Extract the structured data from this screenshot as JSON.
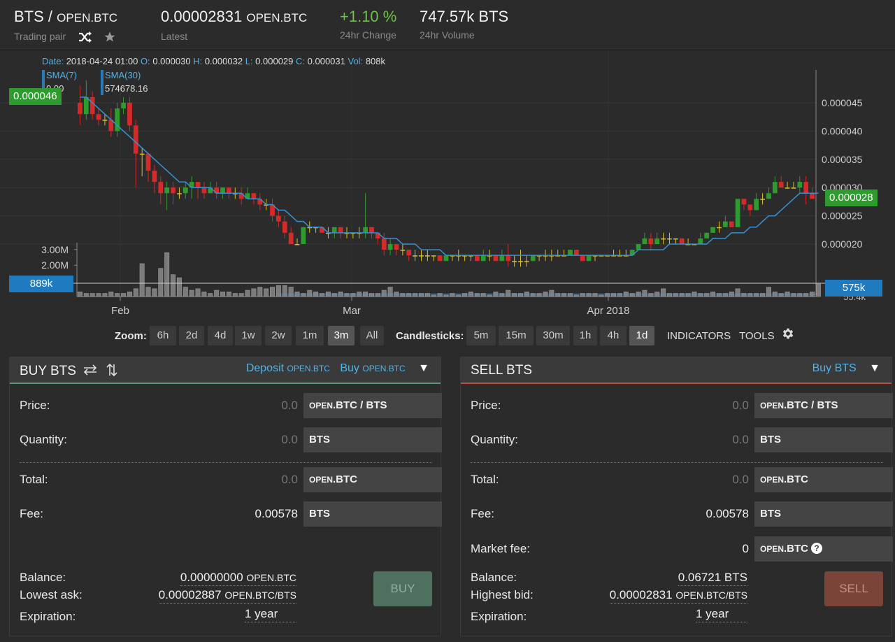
{
  "header": {
    "pair_base": "BTS",
    "pair_sep": "/",
    "pair_quote": "OPEN.BTC",
    "pair_label": "Trading pair",
    "latest_value": "0.00002831",
    "latest_unit": "OPEN.BTC",
    "latest_label": "Latest",
    "change_value": "+1.10 %",
    "change_label": "24hr Change",
    "volume_value": "747.57k BTS",
    "volume_label": "24hr Volume",
    "icons": [
      "shuffle-icon",
      "star-icon"
    ]
  },
  "chart": {
    "ohlc": {
      "date_label": "Date:",
      "date": "2018-04-24 01:00",
      "o_label": "O:",
      "o": "0.000030",
      "h_label": "H:",
      "h": "0.000032",
      "l_label": "L:",
      "l": "0.000029",
      "c_label": "C:",
      "c": "0.000031",
      "vol_label": "Vol:",
      "vol": "808k"
    },
    "sma7_label": "SMA(7)",
    "sma7_value": "0.00",
    "sma30_label": "SMA(30)",
    "sma30_value": "574678.16",
    "left_price_tag": "0.000046",
    "right_price_tag": "0.000028",
    "left_volume_tag": "889k",
    "right_volume_tag": "575k",
    "hidden_volume_tick": "55.4k",
    "colors": {
      "up": "#2e9b2e",
      "down": "#d42a2a",
      "sma": "#3b8fd0",
      "volume_bar": "#8a8a8a",
      "volume_area": "#2a6fa8"
    }
  },
  "chart_data": {
    "type": "candlestick",
    "price_axis_ticks": [
      "0.000045",
      "0.000040",
      "0.000035",
      "0.000030",
      "0.000025",
      "0.000020"
    ],
    "volume_axis_ticks": [
      "3.00M",
      "2.00M"
    ],
    "x_ticks": [
      "Feb",
      "Mar",
      "Apr 2018"
    ],
    "candles": [
      {
        "o": 4.5e-05,
        "c": 4.3e-05,
        "h": 4.8e-05,
        "l": 4.1e-05
      },
      {
        "o": 4.3e-05,
        "c": 4.6e-05,
        "h": 4.9e-05,
        "l": 4.2e-05
      },
      {
        "o": 4.6e-05,
        "c": 4.3e-05,
        "h": 4.7e-05,
        "l": 4.2e-05
      },
      {
        "o": 4.3e-05,
        "c": 4.2e-05,
        "h": 4.4e-05,
        "l": 4.1e-05
      },
      {
        "o": 4.2e-05,
        "c": 4.2e-05,
        "h": 4.3e-05,
        "l": 4.1e-05
      },
      {
        "o": 4.2e-05,
        "c": 4e-05,
        "h": 4.4e-05,
        "l": 3.9e-05
      },
      {
        "o": 4e-05,
        "c": 4.4e-05,
        "h": 4.5e-05,
        "l": 3.9e-05
      },
      {
        "o": 4.4e-05,
        "c": 4.5e-05,
        "h": 4.6e-05,
        "l": 4.3e-05
      },
      {
        "o": 4.5e-05,
        "c": 4.1e-05,
        "h": 4.6e-05,
        "l": 4e-05
      },
      {
        "o": 4.1e-05,
        "c": 3.6e-05,
        "h": 4.2e-05,
        "l": 3e-05
      },
      {
        "o": 3.6e-05,
        "c": 3.6e-05,
        "h": 3.7e-05,
        "l": 3.2e-05
      },
      {
        "o": 3.6e-05,
        "c": 3.3e-05,
        "h": 3.6e-05,
        "l": 3.1e-05
      },
      {
        "o": 3.3e-05,
        "c": 3.1e-05,
        "h": 3.4e-05,
        "l": 2.9e-05
      },
      {
        "o": 3.1e-05,
        "c": 2.9e-05,
        "h": 3.2e-05,
        "l": 2.7e-05
      },
      {
        "o": 2.9e-05,
        "c": 3e-05,
        "h": 3.1e-05,
        "l": 2.6e-05
      },
      {
        "o": 3e-05,
        "c": 2.9e-05,
        "h": 3.1e-05,
        "l": 2.7e-05
      },
      {
        "o": 2.9e-05,
        "c": 2.9e-05,
        "h": 3e-05,
        "l": 2.8e-05
      },
      {
        "o": 2.9e-05,
        "c": 3e-05,
        "h": 3.1e-05,
        "l": 2.8e-05
      },
      {
        "o": 3e-05,
        "c": 3.1e-05,
        "h": 3.2e-05,
        "l": 2.8e-05
      },
      {
        "o": 3.1e-05,
        "c": 3e-05,
        "h": 3.1e-05,
        "l": 2.8e-05
      },
      {
        "o": 3e-05,
        "c": 2.9e-05,
        "h": 3.1e-05,
        "l": 2.8e-05
      },
      {
        "o": 2.9e-05,
        "c": 3e-05,
        "h": 3.1e-05,
        "l": 2.9e-05
      },
      {
        "o": 3e-05,
        "c": 2.9e-05,
        "h": 3.1e-05,
        "l": 2.8e-05
      },
      {
        "o": 2.9e-05,
        "c": 3e-05,
        "h": 3e-05,
        "l": 2.8e-05
      },
      {
        "o": 3e-05,
        "c": 2.9e-05,
        "h": 3e-05,
        "l": 2.8e-05
      },
      {
        "o": 2.9e-05,
        "c": 2.9e-05,
        "h": 3e-05,
        "l": 2.8e-05
      },
      {
        "o": 2.9e-05,
        "c": 2.8e-05,
        "h": 3e-05,
        "l": 2.7e-05
      },
      {
        "o": 2.8e-05,
        "c": 2.9e-05,
        "h": 3e-05,
        "l": 2.8e-05
      },
      {
        "o": 2.9e-05,
        "c": 2.8e-05,
        "h": 2.9e-05,
        "l": 2.7e-05
      },
      {
        "o": 2.8e-05,
        "c": 2.7e-05,
        "h": 2.9e-05,
        "l": 2.6e-05
      },
      {
        "o": 2.7e-05,
        "c": 2.7e-05,
        "h": 2.8e-05,
        "l": 2.6e-05
      },
      {
        "o": 2.7e-05,
        "c": 2.5e-05,
        "h": 2.8e-05,
        "l": 2.4e-05
      },
      {
        "o": 2.5e-05,
        "c": 2.4e-05,
        "h": 2.6e-05,
        "l": 2.3e-05
      },
      {
        "o": 2.4e-05,
        "c": 2.2e-05,
        "h": 2.5e-05,
        "l": 2.1e-05
      },
      {
        "o": 2.2e-05,
        "c": 2e-05,
        "h": 2.3e-05,
        "l": 2e-05
      },
      {
        "o": 2e-05,
        "c": 2e-05,
        "h": 2.1e-05,
        "l": 2e-05
      },
      {
        "o": 2e-05,
        "c": 2.3e-05,
        "h": 2.3e-05,
        "l": 2e-05
      },
      {
        "o": 2.3e-05,
        "c": 2.3e-05,
        "h": 2.4e-05,
        "l": 2.2e-05
      },
      {
        "o": 2.3e-05,
        "c": 2.3e-05,
        "h": 2.3e-05,
        "l": 2.2e-05
      },
      {
        "o": 2.3e-05,
        "c": 2.2e-05,
        "h": 2.3e-05,
        "l": 2.2e-05
      },
      {
        "o": 2.2e-05,
        "c": 2.2e-05,
        "h": 2.3e-05,
        "l": 2.1e-05
      },
      {
        "o": 2.2e-05,
        "c": 2.3e-05,
        "h": 2.3e-05,
        "l": 2.1e-05
      },
      {
        "o": 2.3e-05,
        "c": 2.2e-05,
        "h": 2.3e-05,
        "l": 2.1e-05
      },
      {
        "o": 2.2e-05,
        "c": 2.2e-05,
        "h": 2.3e-05,
        "l": 2.1e-05
      },
      {
        "o": 2.2e-05,
        "c": 2.2e-05,
        "h": 2.2e-05,
        "l": 2.1e-05
      },
      {
        "o": 2.2e-05,
        "c": 2.2e-05,
        "h": 2.3e-05,
        "l": 2.1e-05
      },
      {
        "o": 2.2e-05,
        "c": 2.3e-05,
        "h": 2.9e-05,
        "l": 2.1e-05
      },
      {
        "o": 2.3e-05,
        "c": 2.2e-05,
        "h": 2.3e-05,
        "l": 2.1e-05
      },
      {
        "o": 2.2e-05,
        "c": 2.1e-05,
        "h": 2.2e-05,
        "l": 2e-05
      },
      {
        "o": 2.1e-05,
        "c": 1.9e-05,
        "h": 2.2e-05,
        "l": 1.8e-05
      },
      {
        "o": 1.9e-05,
        "c": 2e-05,
        "h": 2.1e-05,
        "l": 1.8e-05
      },
      {
        "o": 2e-05,
        "c": 1.9e-05,
        "h": 2e-05,
        "l": 1.8e-05
      },
      {
        "o": 1.9e-05,
        "c": 1.9e-05,
        "h": 2e-05,
        "l": 1.8e-05
      },
      {
        "o": 1.9e-05,
        "c": 1.8e-05,
        "h": 1.9e-05,
        "l": 1.7e-05
      },
      {
        "o": 1.8e-05,
        "c": 1.8e-05,
        "h": 1.9e-05,
        "l": 1.7e-05
      },
      {
        "o": 1.8e-05,
        "c": 1.8e-05,
        "h": 1.9e-05,
        "l": 1.7e-05
      },
      {
        "o": 1.8e-05,
        "c": 1.8e-05,
        "h": 1.9e-05,
        "l": 1.7e-05
      },
      {
        "o": 1.8e-05,
        "c": 1.8e-05,
        "h": 1.8e-05,
        "l": 1.7e-05
      },
      {
        "o": 1.8e-05,
        "c": 1.7e-05,
        "h": 1.8e-05,
        "l": 1.7e-05
      },
      {
        "o": 1.7e-05,
        "c": 1.8e-05,
        "h": 1.8e-05,
        "l": 1.7e-05
      },
      {
        "o": 1.8e-05,
        "c": 1.8e-05,
        "h": 1.8e-05,
        "l": 1.7e-05
      },
      {
        "o": 1.8e-05,
        "c": 1.8e-05,
        "h": 1.9e-05,
        "l": 1.7e-05
      },
      {
        "o": 1.8e-05,
        "c": 1.8e-05,
        "h": 1.8e-05,
        "l": 1.7e-05
      },
      {
        "o": 1.8e-05,
        "c": 1.8e-05,
        "h": 1.8e-05,
        "l": 1.7e-05
      },
      {
        "o": 1.8e-05,
        "c": 1.7e-05,
        "h": 1.8e-05,
        "l": 1.7e-05
      },
      {
        "o": 1.7e-05,
        "c": 1.8e-05,
        "h": 1.9e-05,
        "l": 1.7e-05
      },
      {
        "o": 1.8e-05,
        "c": 1.8e-05,
        "h": 1.9e-05,
        "l": 1.7e-05
      },
      {
        "o": 1.8e-05,
        "c": 1.7e-05,
        "h": 1.8e-05,
        "l": 1.7e-05
      },
      {
        "o": 1.7e-05,
        "c": 1.8e-05,
        "h": 1.9e-05,
        "l": 1.7e-05
      },
      {
        "o": 1.8e-05,
        "c": 1.7e-05,
        "h": 2e-05,
        "l": 1.6e-05
      },
      {
        "o": 1.7e-05,
        "c": 1.7e-05,
        "h": 1.8e-05,
        "l": 1.6e-05
      },
      {
        "o": 1.7e-05,
        "c": 1.7e-05,
        "h": 1.9e-05,
        "l": 1.6e-05
      },
      {
        "o": 1.7e-05,
        "c": 1.7e-05,
        "h": 1.8e-05,
        "l": 1.6e-05
      },
      {
        "o": 1.7e-05,
        "c": 1.8e-05,
        "h": 1.8e-05,
        "l": 1.7e-05
      },
      {
        "o": 1.8e-05,
        "c": 1.8e-05,
        "h": 1.8e-05,
        "l": 1.7e-05
      },
      {
        "o": 1.8e-05,
        "c": 1.8e-05,
        "h": 1.9e-05,
        "l": 1.7e-05
      },
      {
        "o": 1.8e-05,
        "c": 1.8e-05,
        "h": 1.9e-05,
        "l": 1.7e-05
      },
      {
        "o": 1.8e-05,
        "c": 1.8e-05,
        "h": 1.9e-05,
        "l": 1.8e-05
      },
      {
        "o": 1.8e-05,
        "c": 1.8e-05,
        "h": 1.9e-05,
        "l": 1.8e-05
      },
      {
        "o": 1.8e-05,
        "c": 1.9e-05,
        "h": 1.9e-05,
        "l": 1.8e-05
      },
      {
        "o": 1.9e-05,
        "c": 1.8e-05,
        "h": 1.9e-05,
        "l": 1.8e-05
      },
      {
        "o": 1.8e-05,
        "c": 1.7e-05,
        "h": 1.8e-05,
        "l": 1.7e-05
      },
      {
        "o": 1.7e-05,
        "c": 1.8e-05,
        "h": 1.8e-05,
        "l": 1.7e-05
      },
      {
        "o": 1.8e-05,
        "c": 1.8e-05,
        "h": 1.8e-05,
        "l": 1.7e-05
      },
      {
        "o": 1.8e-05,
        "c": 1.8e-05,
        "h": 1.8e-05,
        "l": 1.8e-05
      },
      {
        "o": 1.8e-05,
        "c": 1.8e-05,
        "h": 1.8e-05,
        "l": 1.8e-05
      },
      {
        "o": 1.8e-05,
        "c": 1.8e-05,
        "h": 1.9e-05,
        "l": 1.8e-05
      },
      {
        "o": 1.8e-05,
        "c": 1.8e-05,
        "h": 1.9e-05,
        "l": 1.8e-05
      },
      {
        "o": 1.8e-05,
        "c": 1.8e-05,
        "h": 1.9e-05,
        "l": 1.8e-05
      },
      {
        "o": 1.8e-05,
        "c": 1.9e-05,
        "h": 1.9e-05,
        "l": 1.8e-05
      },
      {
        "o": 1.9e-05,
        "c": 2e-05,
        "h": 2e-05,
        "l": 1.9e-05
      },
      {
        "o": 2e-05,
        "c": 2.1e-05,
        "h": 2.2e-05,
        "l": 2e-05
      },
      {
        "o": 2.1e-05,
        "c": 2e-05,
        "h": 2.2e-05,
        "l": 1.9e-05
      },
      {
        "o": 2e-05,
        "c": 2.1e-05,
        "h": 2.2e-05,
        "l": 2e-05
      },
      {
        "o": 2.1e-05,
        "c": 2.1e-05,
        "h": 2.2e-05,
        "l": 2e-05
      },
      {
        "o": 2.1e-05,
        "c": 2.1e-05,
        "h": 2.2e-05,
        "l": 2e-05
      },
      {
        "o": 2.1e-05,
        "c": 2.1e-05,
        "h": 2.1e-05,
        "l": 2e-05
      },
      {
        "o": 2.1e-05,
        "c": 2e-05,
        "h": 2.1e-05,
        "l": 2e-05
      },
      {
        "o": 2e-05,
        "c": 2e-05,
        "h": 2.1e-05,
        "l": 2e-05
      },
      {
        "o": 2e-05,
        "c": 2e-05,
        "h": 2e-05,
        "l": 2e-05
      },
      {
        "o": 2e-05,
        "c": 2.1e-05,
        "h": 2.2e-05,
        "l": 2e-05
      },
      {
        "o": 2.1e-05,
        "c": 2.2e-05,
        "h": 2.2e-05,
        "l": 2.1e-05
      },
      {
        "o": 2.2e-05,
        "c": 2.3e-05,
        "h": 2.3e-05,
        "l": 2.2e-05
      },
      {
        "o": 2.3e-05,
        "c": 2.3e-05,
        "h": 2.4e-05,
        "l": 2.2e-05
      },
      {
        "o": 2.3e-05,
        "c": 2.4e-05,
        "h": 2.5e-05,
        "l": 2.3e-05
      },
      {
        "o": 2.4e-05,
        "c": 2.3e-05,
        "h": 2.4e-05,
        "l": 2.3e-05
      },
      {
        "o": 2.3e-05,
        "c": 2.8e-05,
        "h": 2.8e-05,
        "l": 2.3e-05
      },
      {
        "o": 2.8e-05,
        "c": 2.7e-05,
        "h": 2.8e-05,
        "l": 2.6e-05
      },
      {
        "o": 2.7e-05,
        "c": 2.6e-05,
        "h": 2.7e-05,
        "l": 2.5e-05
      },
      {
        "o": 2.6e-05,
        "c": 2.8e-05,
        "h": 2.9e-05,
        "l": 2.6e-05
      },
      {
        "o": 2.8e-05,
        "c": 2.8e-05,
        "h": 2.9e-05,
        "l": 2.7e-05
      },
      {
        "o": 2.8e-05,
        "c": 2.9e-05,
        "h": 3e-05,
        "l": 2.8e-05
      },
      {
        "o": 2.9e-05,
        "c": 3.1e-05,
        "h": 3.2e-05,
        "l": 2.9e-05
      },
      {
        "o": 3.1e-05,
        "c": 3e-05,
        "h": 3.2e-05,
        "l": 3e-05
      },
      {
        "o": 3e-05,
        "c": 3e-05,
        "h": 3.1e-05,
        "l": 3e-05
      },
      {
        "o": 3e-05,
        "c": 3e-05,
        "h": 3.1e-05,
        "l": 3e-05
      },
      {
        "o": 3e-05,
        "c": 3.1e-05,
        "h": 3.2e-05,
        "l": 2.9e-05
      },
      {
        "o": 3.1e-05,
        "c": 2.9e-05,
        "h": 3.2e-05,
        "l": 2.7e-05
      },
      {
        "o": 2.9e-05,
        "c": 2.8e-05,
        "h": 3e-05,
        "l": 2.8e-05
      }
    ],
    "sma30": [
      4.6e-05,
      4.6e-05,
      4.5e-05,
      4.4e-05,
      4.3e-05,
      4.2e-05,
      4.1e-05,
      4e-05,
      3.9e-05,
      3.8e-05,
      3.7e-05,
      3.6e-05,
      3.5e-05,
      3.4e-05,
      3.3e-05,
      3.2e-05,
      3.1e-05,
      3.1e-05,
      3e-05,
      3e-05,
      3e-05,
      3e-05,
      2.9e-05,
      2.9e-05,
      2.9e-05,
      2.9e-05,
      2.9e-05,
      2.8e-05,
      2.8e-05,
      2.8e-05,
      2.7e-05,
      2.7e-05,
      2.6e-05,
      2.6e-05,
      2.5e-05,
      2.4e-05,
      2.4e-05,
      2.3e-05,
      2.3e-05,
      2.3e-05,
      2.2e-05,
      2.2e-05,
      2.2e-05,
      2.2e-05,
      2.2e-05,
      2.2e-05,
      2.2e-05,
      2.2e-05,
      2.2e-05,
      2.1e-05,
      2.1e-05,
      2.1e-05,
      2e-05,
      2e-05,
      2e-05,
      1.9e-05,
      1.9e-05,
      1.9e-05,
      1.9e-05,
      1.8e-05,
      1.8e-05,
      1.8e-05,
      1.8e-05,
      1.8e-05,
      1.8e-05,
      1.8e-05,
      1.8e-05,
      1.8e-05,
      1.8e-05,
      1.8e-05,
      1.8e-05,
      1.8e-05,
      1.8e-05,
      1.8e-05,
      1.8e-05,
      1.8e-05,
      1.8e-05,
      1.8e-05,
      1.8e-05,
      1.8e-05,
      1.8e-05,
      1.8e-05,
      1.8e-05,
      1.8e-05,
      1.8e-05,
      1.8e-05,
      1.8e-05,
      1.8e-05,
      1.8e-05,
      1.8e-05,
      1.9e-05,
      1.9e-05,
      1.9e-05,
      1.9e-05,
      1.9e-05,
      2e-05,
      2e-05,
      2e-05,
      2e-05,
      2e-05,
      2e-05,
      2e-05,
      2.1e-05,
      2.1e-05,
      2.1e-05,
      2.2e-05,
      2.2e-05,
      2.2e-05,
      2.3e-05,
      2.3e-05,
      2.4e-05,
      2.5e-05,
      2.5e-05,
      2.6e-05,
      2.7e-05,
      2.8e-05,
      2.9e-05,
      2.9e-05,
      2.9e-05,
      2.9e-05
    ],
    "volume": [
      0.3,
      0.2,
      0.2,
      0.2,
      0.2,
      0.3,
      0.2,
      0.2,
      0.3,
      0.5,
      2.1,
      0.6,
      0.5,
      1.8,
      2.8,
      1.4,
      1.2,
      0.6,
      0.4,
      0.5,
      0.3,
      0.2,
      0.4,
      0.3,
      0.3,
      0.2,
      0.2,
      0.4,
      0.5,
      0.6,
      0.5,
      0.6,
      0.7,
      0.7,
      0.6,
      0.3,
      0.2,
      0.4,
      0.3,
      0.2,
      0.3,
      0.2,
      0.3,
      0.2,
      0.2,
      0.3,
      0.3,
      0.2,
      0.2,
      0.4,
      0.6,
      0.3,
      0.2,
      0.2,
      0.2,
      0.2,
      0.2,
      0.1,
      0.2,
      0.1,
      0.2,
      0.1,
      0.2,
      0.3,
      0.2,
      0.2,
      0.1,
      0.3,
      0.2,
      0.4,
      0.2,
      0.2,
      0.3,
      0.2,
      0.2,
      0.3,
      0.4,
      0.2,
      0.2,
      0.2,
      0.1,
      0.2,
      0.2,
      0.2,
      0.1,
      0.2,
      0.2,
      0.2,
      0.3,
      0.2,
      0.3,
      0.4,
      0.2,
      0.3,
      0.5,
      0.2,
      0.2,
      0.2,
      0.2,
      0.3,
      0.2,
      0.2,
      0.3,
      0.2,
      0.2,
      0.3,
      0.5,
      0.2,
      0.2,
      0.2,
      0.2,
      0.6,
      0.3,
      0.2,
      0.3,
      0.2,
      0.2,
      0.2,
      0.3,
      0.8
    ]
  },
  "zoom": {
    "label": "Zoom:",
    "options": [
      "6h",
      "2d",
      "4d",
      "1w",
      "2w",
      "1m",
      "3m",
      "All"
    ],
    "active": "3m"
  },
  "candles": {
    "label": "Candlesticks:",
    "options": [
      "5m",
      "15m",
      "30m",
      "1h",
      "4h",
      "1d"
    ],
    "active": "1d"
  },
  "toolbar": {
    "indicators": "INDICATORS",
    "tools": "TOOLS"
  },
  "buy": {
    "title": "BUY BTS",
    "deposit_link": "Deposit",
    "deposit_unit": "OPEN.BTC",
    "buy_link": "Buy",
    "buy_unit": "OPEN.BTC",
    "price_label": "Price:",
    "price_value": "0.0",
    "price_unit_prefix": "OPEN",
    "price_unit": ".BTC / BTS",
    "qty_label": "Quantity:",
    "qty_value": "0.0",
    "qty_unit": "BTS",
    "total_label": "Total:",
    "total_value": "0.0",
    "total_unit_prefix": "OPEN",
    "total_unit": ".BTC",
    "fee_label": "Fee:",
    "fee_value": "0.00578",
    "fee_unit": "BTS",
    "balance_label": "Balance:",
    "balance_value": "0.00000000",
    "balance_unit": "OPEN.BTC",
    "lowest_ask_label": "Lowest ask:",
    "lowest_ask_value": "0.00002887",
    "lowest_ask_unit": "OPEN.BTC/BTS",
    "expiration_label": "Expiration:",
    "expiration_value": "1 year",
    "action": "BUY"
  },
  "sell": {
    "title": "SELL BTS",
    "buy_link": "Buy BTS",
    "price_label": "Price:",
    "price_value": "0.0",
    "price_unit_prefix": "OPEN",
    "price_unit": ".BTC / BTS",
    "qty_label": "Quantity:",
    "qty_value": "0.0",
    "qty_unit": "BTS",
    "total_label": "Total:",
    "total_value": "0.0",
    "total_unit_prefix": "OPEN",
    "total_unit": ".BTC",
    "fee_label": "Fee:",
    "fee_value": "0.00578",
    "fee_unit": "BTS",
    "market_fee_label": "Market fee:",
    "market_fee_value": "0",
    "market_fee_unit_prefix": "OPEN",
    "market_fee_unit": ".BTC",
    "balance_label": "Balance:",
    "balance_value": "0.06721 BTS",
    "highest_bid_label": "Highest bid:",
    "highest_bid_value": "0.00002831",
    "highest_bid_unit": "OPEN.BTC/BTS",
    "expiration_label": "Expiration:",
    "expiration_value": "1 year",
    "action": "SELL"
  }
}
